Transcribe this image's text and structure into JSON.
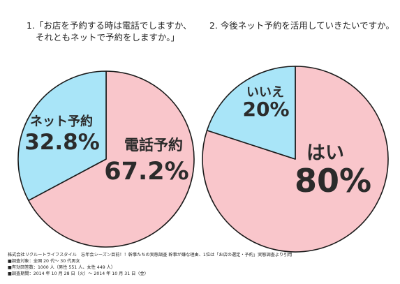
{
  "questions": {
    "q1": {
      "title_line1": "1.「お店を予約する時は電話でしますか、",
      "title_line2": "それともネットで予約をしますか。」"
    },
    "q2": {
      "title": "2.  今後ネット予約を活用していきたいですか。"
    }
  },
  "chart_data": [
    {
      "type": "pie",
      "title": "1.「お店を予約する時は電話でしますか、それともネットで予約をしますか。」",
      "slices": [
        {
          "label": "電話予約",
          "value": 67.2,
          "display": "67.2%",
          "color": "#f9c6cb"
        },
        {
          "label": "ネット予約",
          "value": 32.8,
          "display": "32.8%",
          "color": "#a9e5f8"
        }
      ],
      "start": "12 o'clock",
      "direction": "clockwise"
    },
    {
      "type": "pie",
      "title": "2.  今後ネット予約を活用していきたいですか。",
      "slices": [
        {
          "label": "はい",
          "value": 80,
          "display": "80%",
          "color": "#f9c6cb"
        },
        {
          "label": "いいえ",
          "value": 20,
          "display": "20%",
          "color": "#a9e5f8"
        }
      ],
      "start": "12 o'clock",
      "direction": "clockwise"
    }
  ],
  "footer": {
    "source": "株式会社リクルートライフスタイル　忘年会シーズン目前！！幹事たちの実態調査 幹事が嫌な理由、1位は「お店の選定・予約」実態調査より引用",
    "target": "■調査対象：全国 20 代〜 30 代男女",
    "respondents": "■有効回答数：1000 人（男性 551 人、女性 449 人）",
    "period": "■調査期間：2014 年 10 月 28 日（火）〜 2014 年 10 月 31 日（金）"
  },
  "colors": {
    "pink": "#f9c6cb",
    "blue": "#a9e5f8",
    "outline": "#1a1a1a",
    "label": "#2b2b2b"
  }
}
